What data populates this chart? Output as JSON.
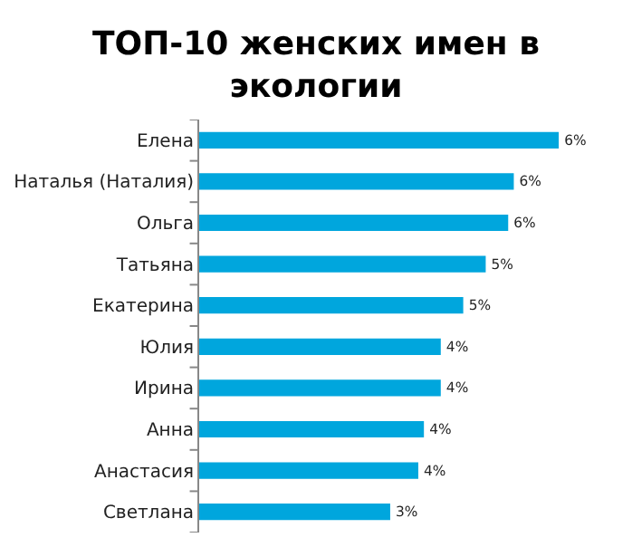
{
  "chart_data": {
    "type": "bar",
    "orientation": "horizontal",
    "title": "ТОП-10 женских имен в экологии",
    "categories": [
      "Елена",
      "Наталья (Наталия)",
      "Ольга",
      "Татьяна",
      "Екатерина",
      "Юлия",
      "Ирина",
      "Анна",
      "Анастасия",
      "Светлана"
    ],
    "values": [
      6.4,
      5.6,
      5.5,
      5.1,
      4.7,
      4.3,
      4.3,
      4.0,
      3.9,
      3.4
    ],
    "value_labels": [
      "6%",
      "6%",
      "6%",
      "5%",
      "5%",
      "4%",
      "4%",
      "4%",
      "4%",
      "3%"
    ],
    "color": "#00a6dd"
  }
}
